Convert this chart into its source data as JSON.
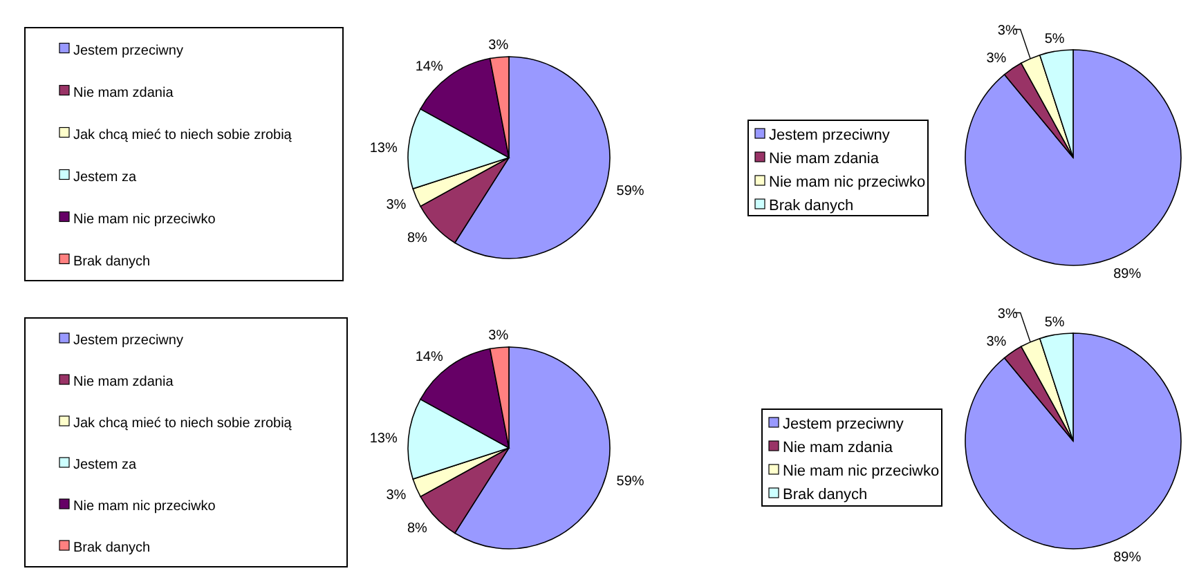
{
  "chart_data": [
    {
      "type": "pie",
      "categories": [
        "Jestem przeciwny",
        "Nie mam zdania",
        "Jak chcą mieć to niech sobie zrobią",
        "Jestem za",
        "Nie mam nic przeciwko",
        "Brak danych"
      ],
      "values": [
        59,
        8,
        3,
        13,
        14,
        3
      ],
      "value_labels": [
        "59%",
        "8%",
        "3%",
        "13%",
        "14%",
        "3%"
      ],
      "colors": [
        "#9999ff",
        "#993366",
        "#ffffcc",
        "#ccffff",
        "#660066",
        "#ff8080"
      ],
      "legend": "left"
    },
    {
      "type": "pie",
      "categories": [
        "Jestem przeciwny",
        "Nie mam zdania",
        "Nie mam nic przeciwko",
        "Brak danych"
      ],
      "values": [
        89,
        3,
        3,
        5
      ],
      "value_labels": [
        "89%",
        "3%",
        "3%",
        "5%"
      ],
      "colors": [
        "#9999ff",
        "#993366",
        "#ffffcc",
        "#ccffff"
      ],
      "legend": "left"
    },
    {
      "type": "pie",
      "categories": [
        "Jestem przeciwny",
        "Nie mam zdania",
        "Jak chcą mieć to niech sobie zrobią",
        "Jestem za",
        "Nie mam nic przeciwko",
        "Brak danych"
      ],
      "values": [
        59,
        8,
        3,
        13,
        14,
        3
      ],
      "value_labels": [
        "59%",
        "8%",
        "3%",
        "13%",
        "14%",
        "3%"
      ],
      "colors": [
        "#9999ff",
        "#993366",
        "#ffffcc",
        "#ccffff",
        "#660066",
        "#ff8080"
      ],
      "legend": "left"
    },
    {
      "type": "pie",
      "categories": [
        "Jestem przeciwny",
        "Nie mam zdania",
        "Nie mam nic przeciwko",
        "Brak danych"
      ],
      "values": [
        89,
        3,
        3,
        5
      ],
      "value_labels": [
        "89%",
        "3%",
        "3%",
        "5%"
      ],
      "colors": [
        "#9999ff",
        "#993366",
        "#ffffcc",
        "#ccffff"
      ],
      "legend": "left"
    }
  ]
}
